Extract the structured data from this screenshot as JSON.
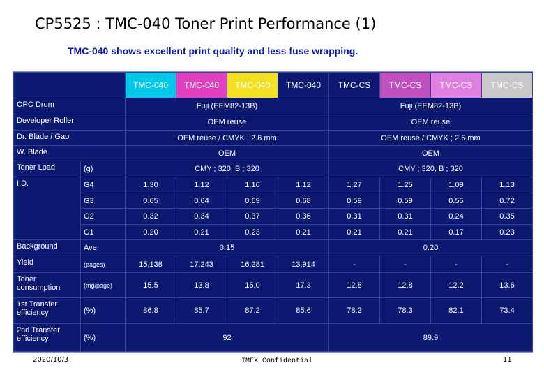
{
  "header": {
    "title": "CP5525 : TMC-040 Toner Print Performance (1)",
    "subtitle": "TMC-040 shows excellent print quality and less fuse wrapping."
  },
  "table": {
    "header": [
      {
        "text": "TMC-040",
        "color": "#00c8e8"
      },
      {
        "text": "TMC-040",
        "color": "#e040c0"
      },
      {
        "text": "TMC-040",
        "color": "#f0e020"
      },
      {
        "text": "TMC-040",
        "color": "#0b1a70"
      },
      {
        "text": "TMC-CS",
        "color": "#0b1a70"
      },
      {
        "text": "TMC-CS",
        "color": "#c050c0"
      },
      {
        "text": "TMC-CS",
        "color": "#e080e0"
      },
      {
        "text": "TMC-CS",
        "color": "#c8c8c8"
      }
    ],
    "rows": [
      {
        "label": "OPC Drum",
        "cells": [
          "Fuji (EEM82-13B)",
          "Fuji (EEM82-13B)"
        ]
      },
      {
        "label": "Developer Roller",
        "cells": [
          "OEM reuse",
          "OEM reuse"
        ]
      },
      {
        "label": "Dr. Blade  /  Gap",
        "cells": [
          "OEM reuse / CMYK ; 2.6 mm",
          "OEM reuse / CMYK ; 2.6 mm"
        ]
      },
      {
        "label": "W. Blade",
        "cells": [
          "OEM",
          "OEM"
        ]
      },
      {
        "label": "Toner Load",
        "unit": "(g)",
        "cells": [
          "CMY ; 320,   B ; 320",
          "CMY ; 320,   B ; 320"
        ]
      },
      {
        "label": "I.D.",
        "unit": "G4",
        "cells": [
          "1.30",
          "1.12",
          "1.16",
          "1.12",
          "1.27",
          "1.25",
          "1.09",
          "1.13"
        ]
      },
      {
        "unit": "G3",
        "cells": [
          "0.65",
          "0.64",
          "0.69",
          "0.68",
          "0.59",
          "0.59",
          "0.55",
          "0.72"
        ]
      },
      {
        "unit": "G2",
        "cells": [
          "0.32",
          "0.34",
          "0.37",
          "0.36",
          "0.31",
          "0.31",
          "0.24",
          "0.35"
        ]
      },
      {
        "unit": "G1",
        "cells": [
          "0.20",
          "0.21",
          "0.23",
          "0.21",
          "0.21",
          "0.21",
          "0.17",
          "0.23"
        ]
      },
      {
        "label": "Background",
        "unit": "Ave.",
        "cells": [
          "0.15",
          "0.20"
        ]
      },
      {
        "label": "Yield",
        "unit": "(pages)",
        "cells": [
          "15,138",
          "17,243",
          "16,281",
          "13,914",
          "-",
          "-",
          "-",
          "-"
        ]
      },
      {
        "label": "Toner consumption",
        "unit": "(mg/page)",
        "cells": [
          "15.5",
          "13.8",
          "15.0",
          "17.3",
          "12.8",
          "12.8",
          "12.2",
          "13.6"
        ]
      },
      {
        "label": "1st  Transfer efficiency",
        "unit": "(%)",
        "cells": [
          "86.8",
          "85.7",
          "87.2",
          "85.6",
          "78.2",
          "78.3",
          "82.1",
          "73.4"
        ]
      },
      {
        "label": "2nd  Transfer efficiency",
        "unit": "(%)",
        "cells": [
          "92",
          "89.9"
        ]
      }
    ]
  },
  "footer": {
    "date": "2020/10/3",
    "confidential": "IMEX Confidential",
    "page": "11"
  }
}
